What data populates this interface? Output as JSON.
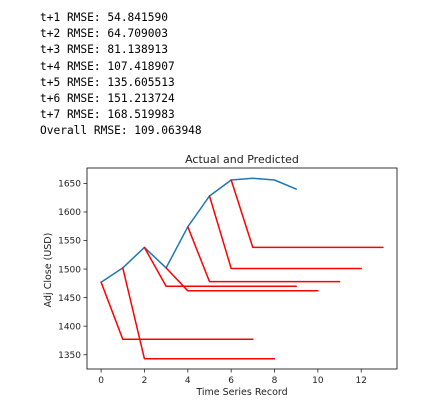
{
  "console": {
    "lines": [
      "t+1 RMSE: 54.841590",
      "t+2 RMSE: 64.709003",
      "t+3 RMSE: 81.138913",
      "t+4 RMSE: 107.418907",
      "t+5 RMSE: 135.605513",
      "t+6 RMSE: 151.213724",
      "t+7 RMSE: 168.519983",
      "Overall RMSE: 109.063948"
    ]
  },
  "chart_data": {
    "type": "line",
    "title": "Actual and Predicted",
    "xlabel": "Time Series Record",
    "ylabel": "Adj Close (USD)",
    "xlim": [
      -0.65,
      13.65
    ],
    "ylim": [
      1325,
      1677
    ],
    "xticks": [
      0,
      2,
      4,
      6,
      8,
      10,
      12
    ],
    "yticks": [
      1350,
      1400,
      1450,
      1500,
      1550,
      1600,
      1650
    ],
    "grid": false,
    "series": [
      {
        "color": "#1f77b4",
        "x": [
          0,
          1,
          2,
          3,
          4,
          5,
          6,
          7,
          8,
          9
        ],
        "y": [
          1477,
          1502,
          1538,
          1502,
          1574,
          1628,
          1656,
          1659,
          1656,
          1640
        ]
      },
      {
        "color": "#ff0000",
        "x": [
          0,
          1,
          2,
          3,
          4,
          5,
          6,
          7
        ],
        "y": [
          1477,
          1377,
          1377,
          1377,
          1377,
          1377,
          1377,
          1377
        ]
      },
      {
        "color": "#ff0000",
        "x": [
          1,
          2,
          3,
          4,
          5,
          6,
          7,
          8
        ],
        "y": [
          1502,
          1343,
          1343,
          1343,
          1343,
          1343,
          1343,
          1343
        ]
      },
      {
        "color": "#ff0000",
        "x": [
          2,
          3,
          4,
          5,
          6,
          7,
          8,
          9
        ],
        "y": [
          1538,
          1470,
          1470,
          1470,
          1470,
          1470,
          1470,
          1470
        ]
      },
      {
        "color": "#ff0000",
        "x": [
          3,
          4,
          5,
          6,
          7,
          8,
          9,
          10
        ],
        "y": [
          1502,
          1462,
          1462,
          1462,
          1462,
          1462,
          1462,
          1462
        ]
      },
      {
        "color": "#ff0000",
        "x": [
          4,
          5,
          6,
          7,
          8,
          9,
          10,
          11
        ],
        "y": [
          1574,
          1478,
          1478,
          1478,
          1478,
          1478,
          1478,
          1478
        ]
      },
      {
        "color": "#ff0000",
        "x": [
          5,
          6,
          7,
          8,
          9,
          10,
          11,
          12
        ],
        "y": [
          1628,
          1501,
          1501,
          1501,
          1501,
          1501,
          1501,
          1501
        ]
      },
      {
        "color": "#ff0000",
        "x": [
          6,
          7,
          8,
          9,
          10,
          11,
          12,
          13
        ],
        "y": [
          1656,
          1538,
          1538,
          1538,
          1538,
          1538,
          1538,
          1538
        ]
      }
    ]
  }
}
